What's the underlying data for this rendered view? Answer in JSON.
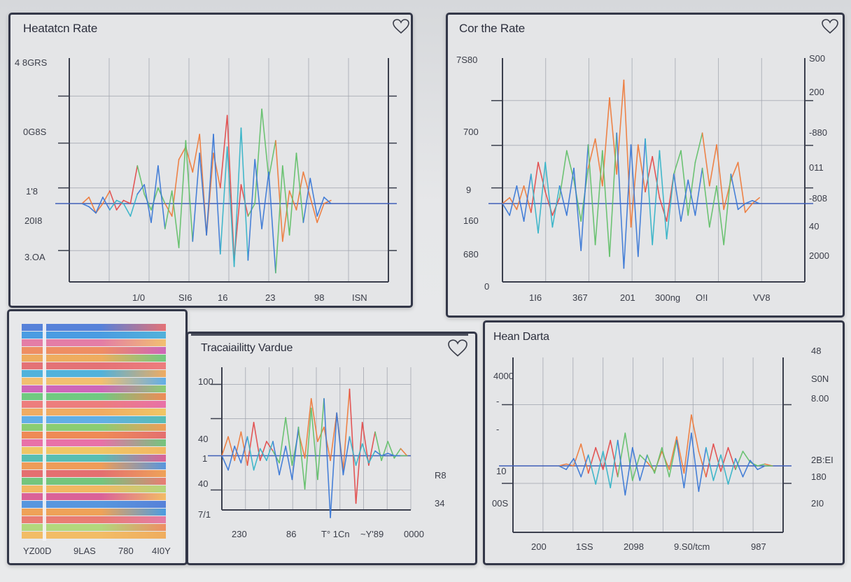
{
  "panels": {
    "heart_rate": {
      "title": "Heatatcn Rate",
      "y_labels": [
        "4 8GRS",
        "0G8S",
        "1'8",
        "20I8",
        "3.OA"
      ],
      "x_labels": [
        "1/0",
        "SI6",
        "16",
        "23",
        "98",
        "ISN"
      ]
    },
    "cor_rate": {
      "title": "Cor the Rate",
      "y_labels_left": [
        "7S80",
        "700",
        "9",
        "160",
        "680",
        "0"
      ],
      "y_labels_right": [
        "S00",
        "200",
        "-880",
        "011",
        "-808",
        "40",
        "2000"
      ],
      "x_labels": [
        "1I6",
        "367",
        "201",
        "300ng",
        "O!I",
        "VV8"
      ]
    },
    "stripes": {
      "x_labels": [
        "YZ00D",
        "9LAS",
        "780",
        "4I0Y"
      ]
    },
    "traceability": {
      "title": "Tracaiailitty Vardue",
      "y_labels": [
        "100",
        "40",
        "1",
        "40",
        "7/1"
      ],
      "right_labels": [
        "R8",
        "34"
      ],
      "x_labels": [
        "230",
        "86",
        "T° 1Cn",
        "~Y'89",
        "0000"
      ]
    },
    "hean_data": {
      "title": "Hean Darta",
      "y_labels_left": [
        "4000",
        "-",
        "-",
        "10",
        "00S"
      ],
      "y_labels_right": [
        "48",
        "S0N",
        "8.00",
        "2B:EI",
        "180",
        "2I0"
      ],
      "x_labels": [
        "200",
        "1SS",
        "2098",
        "9.S0/tcm",
        "987"
      ]
    }
  },
  "colors": {
    "frame": "#333748",
    "grid": "#9fa3ad",
    "baseline": "#3f5fb8",
    "blue": "#3a78d6",
    "orange": "#ee7a3a",
    "green": "#62c06a",
    "red": "#e24a4a",
    "teal": "#35b4c8"
  },
  "chart_data": [
    {
      "type": "line",
      "title": "Heatatcn Rate",
      "series": [
        {
          "values": [
            0,
            2,
            -3,
            0,
            4,
            -2,
            1,
            0,
            12,
            3,
            -2,
            5,
            0,
            -4,
            14,
            18,
            10,
            22,
            -10,
            16,
            5,
            28,
            -18,
            6,
            -4,
            0,
            30,
            8,
            20,
            -12,
            4,
            -2,
            10,
            2,
            -6,
            0,
            1
          ]
        },
        {
          "values": [
            0,
            -1,
            -3,
            2,
            -2,
            1,
            0,
            -4,
            3,
            6,
            -6,
            12,
            -8,
            4,
            -14,
            20,
            -12,
            16,
            -10,
            22,
            -16,
            18,
            -20,
            24,
            -18,
            14,
            -8,
            10,
            -22,
            12,
            -10,
            16,
            -6,
            8,
            -4,
            2,
            0
          ]
        }
      ]
    },
    {
      "type": "line",
      "title": "Cor the Rate",
      "series": [
        {
          "values": [
            0,
            2,
            -2,
            6,
            -3,
            14,
            4,
            -4,
            2,
            18,
            8,
            -6,
            12,
            22,
            6,
            36,
            10,
            42,
            -8,
            20,
            4,
            16,
            2,
            -6,
            10,
            18,
            -4,
            14,
            24,
            6,
            20,
            -2,
            8,
            14,
            -3,
            0,
            2
          ]
        },
        {
          "values": [
            0,
            -4,
            6,
            -6,
            10,
            -10,
            14,
            -8,
            6,
            -4,
            12,
            -16,
            20,
            -14,
            18,
            -18,
            24,
            -22,
            20,
            -18,
            22,
            -14,
            18,
            -12,
            10,
            -6,
            8,
            -4,
            12,
            -8,
            6,
            -14,
            10,
            -2,
            0,
            1,
            0
          ]
        }
      ]
    },
    {
      "type": "line",
      "title": "Tracaiailitty Vardue",
      "series": [
        {
          "values": [
            0,
            8,
            -2,
            10,
            -4,
            14,
            -2,
            6,
            2,
            -3,
            16,
            -4,
            10,
            -1,
            24,
            6,
            12,
            -2,
            18,
            -6,
            28,
            -20,
            14,
            -4,
            10,
            -2,
            6,
            -1,
            3,
            0
          ]
        },
        {
          "values": [
            0,
            -6,
            4,
            -3,
            8,
            -6,
            3,
            -2,
            6,
            -8,
            4,
            -10,
            12,
            -14,
            20,
            -10,
            24,
            -26,
            18,
            -8,
            8,
            -4,
            5,
            -3,
            2,
            0,
            1,
            0,
            0,
            0
          ]
        }
      ]
    },
    {
      "type": "line",
      "title": "Hean Darta",
      "series": [
        {
          "values": [
            0,
            1,
            0,
            12,
            -4,
            10,
            -2,
            14,
            -6,
            18,
            -8,
            6,
            2,
            -3,
            8,
            -2,
            16,
            -4,
            28,
            8,
            -6,
            12,
            -3,
            10,
            -2,
            8,
            2,
            0,
            1,
            0
          ]
        },
        {
          "values": [
            0,
            -2,
            4,
            -6,
            6,
            -10,
            8,
            -12,
            14,
            -16,
            10,
            -8,
            6,
            -4,
            10,
            -6,
            14,
            -12,
            18,
            -14,
            10,
            -8,
            6,
            -10,
            4,
            -6,
            3,
            -2,
            0,
            0
          ]
        }
      ]
    }
  ]
}
